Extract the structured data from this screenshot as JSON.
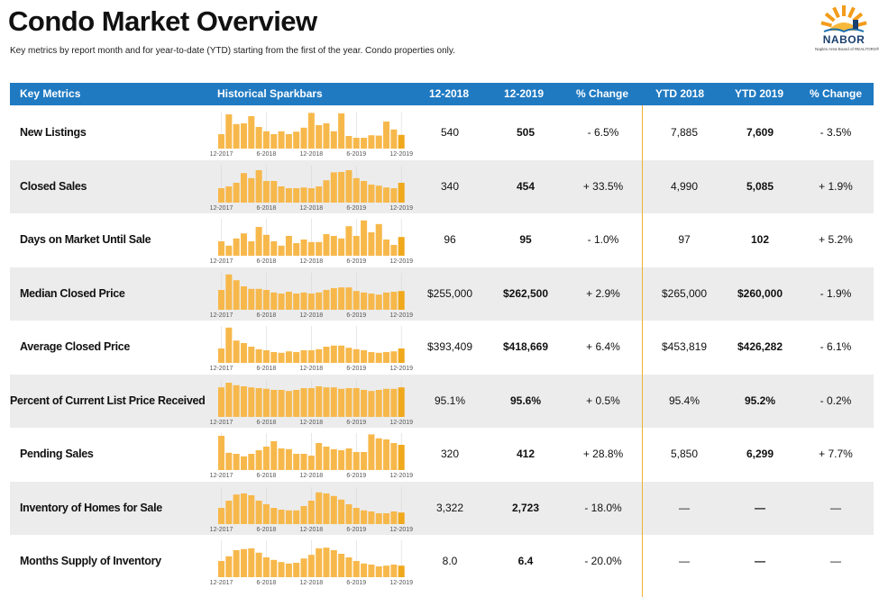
{
  "page": {
    "title": "Condo Market Overview",
    "subtitle": "Key metrics by report month and for year-to-date (YTD) starting from the first of the year. Condo properties only."
  },
  "logo": {
    "name": "NABOR",
    "tagline": "Naples Area Board of REALTORS®",
    "icon": "sun-logo-icon"
  },
  "colors": {
    "header": "#1f7ac2",
    "bar": "#f7b84b",
    "bar_last": "#f0a81c",
    "divider": "#f0b030"
  },
  "columns": [
    "Key Metrics",
    "Historical Sparkbars",
    "12-2018",
    "12-2019",
    "% Change",
    "YTD 2018",
    "YTD 2019",
    "% Change"
  ],
  "spark_axis_labels": [
    "12-2017",
    "6-2018",
    "12-2018",
    "6-2019",
    "12-2019"
  ],
  "rows": [
    {
      "metric": "New Listings",
      "m2018": "540",
      "m2019": "505",
      "pct": "- 6.5%",
      "ytd2018": "7,885",
      "ytd2019": "7,609",
      "ytd_pct": "- 3.5%",
      "spark": [
        0.4,
        0.95,
        0.68,
        0.7,
        0.9,
        0.6,
        0.48,
        0.4,
        0.48,
        0.4,
        0.47,
        0.58,
        0.99,
        0.65,
        0.7,
        0.48,
        0.98,
        0.35,
        0.3,
        0.3,
        0.37,
        0.36,
        0.75,
        0.53,
        0.38
      ]
    },
    {
      "metric": "Closed Sales",
      "m2018": "340",
      "m2019": "454",
      "pct": "+ 33.5%",
      "ytd2018": "4,990",
      "ytd2019": "5,085",
      "ytd_pct": "+ 1.9%",
      "spark": [
        0.4,
        0.45,
        0.55,
        0.82,
        0.68,
        0.9,
        0.6,
        0.6,
        0.45,
        0.4,
        0.4,
        0.42,
        0.4,
        0.45,
        0.62,
        0.84,
        0.85,
        0.9,
        0.68,
        0.6,
        0.5,
        0.47,
        0.42,
        0.4,
        0.55
      ]
    },
    {
      "metric": "Days on Market Until Sale",
      "m2018": "96",
      "m2019": "95",
      "pct": "- 1.0%",
      "ytd2018": "97",
      "ytd2019": "102",
      "ytd_pct": "+ 5.2%",
      "spark": [
        0.4,
        0.28,
        0.48,
        0.62,
        0.4,
        0.8,
        0.58,
        0.4,
        0.28,
        0.55,
        0.35,
        0.45,
        0.38,
        0.38,
        0.6,
        0.55,
        0.48,
        0.82,
        0.55,
        0.98,
        0.65,
        0.88,
        0.45,
        0.3,
        0.52
      ]
    },
    {
      "metric": "Median Closed Price",
      "m2018": "$255,000",
      "m2019": "$262,500",
      "pct": "+ 2.9%",
      "ytd2018": "$265,000",
      "ytd2019": "$260,000",
      "ytd_pct": "- 1.9%",
      "spark": [
        0.55,
        0.98,
        0.82,
        0.65,
        0.58,
        0.58,
        0.55,
        0.48,
        0.45,
        0.5,
        0.45,
        0.48,
        0.45,
        0.48,
        0.55,
        0.6,
        0.62,
        0.62,
        0.52,
        0.48,
        0.45,
        0.42,
        0.48,
        0.5,
        0.52
      ]
    },
    {
      "metric": "Average Closed Price",
      "m2018": "$393,409",
      "m2019": "$418,669",
      "pct": "+ 6.4%",
      "ytd2018": "$453,819",
      "ytd2019": "$426,282",
      "ytd_pct": "- 6.1%",
      "spark": [
        0.4,
        0.98,
        0.62,
        0.55,
        0.45,
        0.38,
        0.35,
        0.3,
        0.28,
        0.32,
        0.3,
        0.35,
        0.35,
        0.38,
        0.45,
        0.48,
        0.48,
        0.42,
        0.38,
        0.35,
        0.3,
        0.28,
        0.3,
        0.32,
        0.4
      ]
    },
    {
      "metric": "Percent of Current List Price Received",
      "m2018": "95.1%",
      "m2019": "95.6%",
      "pct": "+ 0.5%",
      "ytd2018": "95.4%",
      "ytd2019": "95.2%",
      "ytd_pct": "- 0.2%",
      "spark": [
        0.82,
        0.95,
        0.88,
        0.85,
        0.82,
        0.8,
        0.78,
        0.75,
        0.75,
        0.72,
        0.75,
        0.8,
        0.8,
        0.85,
        0.82,
        0.82,
        0.78,
        0.8,
        0.8,
        0.75,
        0.72,
        0.75,
        0.78,
        0.78,
        0.82
      ]
    },
    {
      "metric": "Pending Sales",
      "m2018": "320",
      "m2019": "412",
      "pct": "+ 28.8%",
      "ytd2018": "5,850",
      "ytd2019": "6,299",
      "ytd_pct": "+ 7.7%",
      "spark": [
        0.95,
        0.48,
        0.45,
        0.38,
        0.45,
        0.55,
        0.65,
        0.8,
        0.6,
        0.58,
        0.45,
        0.45,
        0.4,
        0.75,
        0.65,
        0.58,
        0.55,
        0.6,
        0.5,
        0.5,
        0.99,
        0.88,
        0.85,
        0.75,
        0.7
      ]
    },
    {
      "metric": "Inventory of Homes for Sale",
      "m2018": "3,322",
      "m2019": "2,723",
      "pct": "- 18.0%",
      "ytd2018": "—",
      "ytd2019": "—",
      "ytd_pct": "—",
      "spark": [
        0.45,
        0.65,
        0.82,
        0.85,
        0.8,
        0.65,
        0.55,
        0.45,
        0.4,
        0.38,
        0.38,
        0.5,
        0.65,
        0.88,
        0.85,
        0.78,
        0.68,
        0.55,
        0.45,
        0.38,
        0.35,
        0.3,
        0.3,
        0.35,
        0.32
      ]
    },
    {
      "metric": "Months Supply of Inventory",
      "m2018": "8.0",
      "m2019": "6.4",
      "pct": "- 20.0%",
      "ytd2018": "—",
      "ytd2019": "—",
      "ytd_pct": "—",
      "spark": [
        0.45,
        0.58,
        0.75,
        0.78,
        0.8,
        0.68,
        0.55,
        0.48,
        0.42,
        0.38,
        0.4,
        0.52,
        0.62,
        0.8,
        0.82,
        0.75,
        0.65,
        0.55,
        0.45,
        0.38,
        0.35,
        0.3,
        0.32,
        0.35,
        0.32
      ]
    }
  ]
}
